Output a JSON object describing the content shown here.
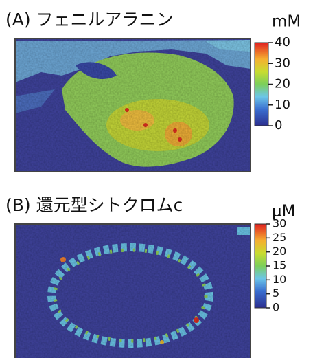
{
  "chart_data": [
    {
      "type": "heatmap",
      "title": "(A) フェニルアラニン",
      "unit": "mM",
      "ylim": [
        0,
        40
      ],
      "yticks": [
        0,
        10,
        20,
        30,
        40
      ]
    },
    {
      "type": "heatmap",
      "title": "(B) 還元型シトクロムc",
      "unit": "μM",
      "ylim": [
        0,
        30
      ],
      "yticks": [
        0,
        5,
        10,
        15,
        20,
        25,
        30
      ]
    }
  ]
}
